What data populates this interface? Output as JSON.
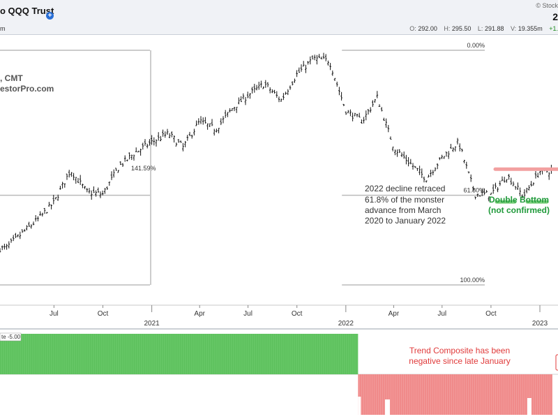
{
  "header": {
    "title": "o QQQ Trust",
    "subtitle": "m",
    "copyright": "© Stock",
    "last_price": "2",
    "ohlc": {
      "o_label": "O:",
      "o": "292.00",
      "h_label": "H:",
      "h": "295.50",
      "l_label": "L:",
      "l": "291.88",
      "v_label": "V:",
      "v": "19.355m",
      "chg": "+1."
    }
  },
  "author": {
    "line1": ", CMT",
    "line2": "estorPro.com"
  },
  "chart_data": {
    "type": "ohlc",
    "symbol": "QQQ",
    "months": [
      {
        "date": "2020-04-01",
        "close": 218
      },
      {
        "date": "2020-05-01",
        "close": 232
      },
      {
        "date": "2020-06-01",
        "close": 246
      },
      {
        "date": "2020-07-01",
        "close": 262
      },
      {
        "date": "2020-08-01",
        "close": 293
      },
      {
        "date": "2020-09-01",
        "close": 272
      },
      {
        "date": "2020-10-01",
        "close": 270
      },
      {
        "date": "2020-11-01",
        "close": 297
      },
      {
        "date": "2020-12-01",
        "close": 310
      },
      {
        "date": "2021-01-01",
        "close": 320
      },
      {
        "date": "2021-02-01",
        "close": 328
      },
      {
        "date": "2021-03-01",
        "close": 315
      },
      {
        "date": "2021-04-01",
        "close": 340
      },
      {
        "date": "2021-05-01",
        "close": 332
      },
      {
        "date": "2021-06-01",
        "close": 352
      },
      {
        "date": "2021-07-01",
        "close": 365
      },
      {
        "date": "2021-08-01",
        "close": 376
      },
      {
        "date": "2021-09-01",
        "close": 360
      },
      {
        "date": "2021-10-01",
        "close": 385
      },
      {
        "date": "2021-11-01",
        "close": 400
      },
      {
        "date": "2021-12-01",
        "close": 398
      },
      {
        "date": "2022-01-01",
        "close": 350
      },
      {
        "date": "2022-02-01",
        "close": 340
      },
      {
        "date": "2022-03-01",
        "close": 363
      },
      {
        "date": "2022-04-01",
        "close": 315
      },
      {
        "date": "2022-05-01",
        "close": 300
      },
      {
        "date": "2022-06-01",
        "close": 285
      },
      {
        "date": "2022-07-01",
        "close": 305
      },
      {
        "date": "2022-08-01",
        "close": 320
      },
      {
        "date": "2022-09-01",
        "close": 270
      },
      {
        "date": "2022-10-01",
        "close": 270
      },
      {
        "date": "2022-11-01",
        "close": 288
      },
      {
        "date": "2022-12-01",
        "close": 268
      },
      {
        "date": "2023-01-01",
        "close": 292
      }
    ],
    "x_tick_labels": [
      {
        "label": "Jul",
        "date": "2020-07-01"
      },
      {
        "label": "Oct",
        "date": "2020-10-01"
      },
      {
        "label": "Apr",
        "date": "2021-04-01"
      },
      {
        "label": "Jul",
        "date": "2021-07-01"
      },
      {
        "label": "Oct",
        "date": "2021-10-01"
      },
      {
        "label": "Apr",
        "date": "2022-04-01"
      },
      {
        "label": "Jul",
        "date": "2022-07-01"
      },
      {
        "label": "Oct",
        "date": "2022-10-01"
      }
    ],
    "x_year_labels": [
      {
        "label": "2021",
        "date": "2021-01-01"
      },
      {
        "label": "2022",
        "date": "2022-01-01"
      },
      {
        "label": "2023",
        "date": "2023-01-01"
      }
    ],
    "fibonacci": {
      "levels": [
        {
          "label": "0.00%",
          "value": 408
        },
        {
          "label": "61.80%",
          "value": 269
        },
        {
          "label": "100.00%",
          "value": 183
        }
      ],
      "advance_label": "141.59%"
    },
    "annotations": {
      "retrace": [
        "2022 decline retraced",
        "61.8% of the monster",
        "advance from March",
        "2020 to January 2022"
      ],
      "double_bottom": [
        "Double Bottom",
        "(not confirmed)"
      ],
      "trend": [
        "Trend Composite has been",
        "negative since late January"
      ]
    },
    "resistance_level": 294,
    "support_level": 268,
    "indicator": {
      "name": "Trend Composite",
      "legend_label": "te -5.00",
      "positive_until": "2022-01-24",
      "negative_from": "2022-01-24",
      "value": -5
    },
    "colors": {
      "bars": "#111111",
      "positive": "#5cc05c",
      "negative": "#f08a8a",
      "resistance": "#f2a0a0",
      "support": "#7dd07d",
      "annotation_green": "#1f9a3a",
      "annotation_red": "#e03a3a"
    }
  }
}
